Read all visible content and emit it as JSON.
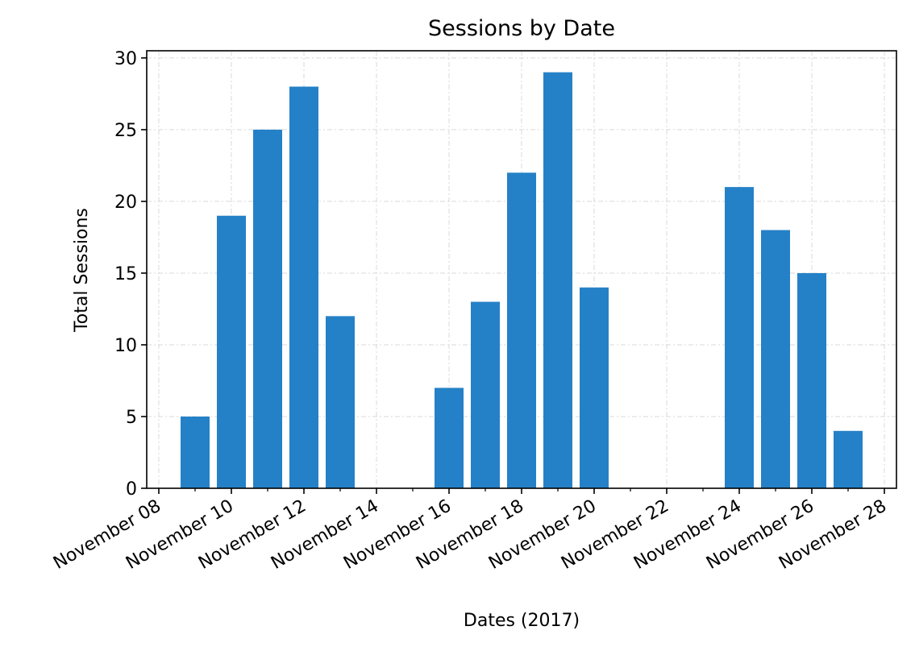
{
  "chart_data": {
    "type": "bar",
    "title": "Sessions by Date",
    "xlabel": "Dates (2017)",
    "ylabel": "Total Sessions",
    "x_axis_type": "date",
    "xlim": [
      "2017-11-07T16:00",
      "2017-11-28T08:00"
    ],
    "ylim": [
      0,
      30.5
    ],
    "yticks": [
      0,
      5,
      10,
      15,
      20,
      25,
      30
    ],
    "xticks": [
      {
        "date": "2017-11-08",
        "label": "November 08"
      },
      {
        "date": "2017-11-10",
        "label": "November 10"
      },
      {
        "date": "2017-11-12",
        "label": "November 12"
      },
      {
        "date": "2017-11-14",
        "label": "November 14"
      },
      {
        "date": "2017-11-16",
        "label": "November 16"
      },
      {
        "date": "2017-11-18",
        "label": "November 18"
      },
      {
        "date": "2017-11-20",
        "label": "November 20"
      },
      {
        "date": "2017-11-22",
        "label": "November 22"
      },
      {
        "date": "2017-11-24",
        "label": "November 24"
      },
      {
        "date": "2017-11-26",
        "label": "November 26"
      },
      {
        "date": "2017-11-28",
        "label": "November 28"
      }
    ],
    "minor_xticks": true,
    "grid": true,
    "legend": false,
    "bar_color": "#2581c7",
    "points": [
      {
        "date": "2017-11-09",
        "value": 5
      },
      {
        "date": "2017-11-10",
        "value": 19
      },
      {
        "date": "2017-11-11",
        "value": 25
      },
      {
        "date": "2017-11-12",
        "value": 28
      },
      {
        "date": "2017-11-13",
        "value": 12
      },
      {
        "date": "2017-11-14",
        "value": 0
      },
      {
        "date": "2017-11-15",
        "value": 0
      },
      {
        "date": "2017-11-16",
        "value": 7
      },
      {
        "date": "2017-11-17",
        "value": 13
      },
      {
        "date": "2017-11-18",
        "value": 22
      },
      {
        "date": "2017-11-19",
        "value": 29
      },
      {
        "date": "2017-11-20",
        "value": 14
      },
      {
        "date": "2017-11-21",
        "value": 0
      },
      {
        "date": "2017-11-22",
        "value": 0
      },
      {
        "date": "2017-11-23",
        "value": 0
      },
      {
        "date": "2017-11-24",
        "value": 21
      },
      {
        "date": "2017-11-25",
        "value": 18
      },
      {
        "date": "2017-11-26",
        "value": 15
      },
      {
        "date": "2017-11-27",
        "value": 4
      }
    ]
  }
}
